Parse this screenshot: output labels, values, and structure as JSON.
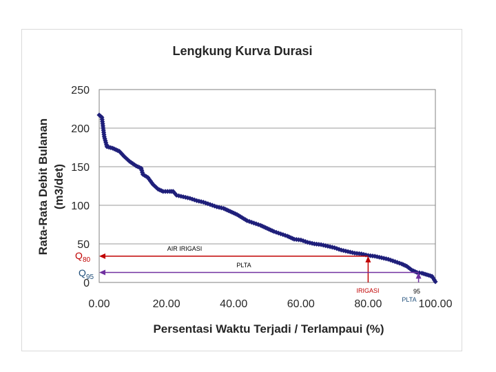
{
  "chart_data": {
    "type": "line",
    "title": "Lengkung Kurva Durasi",
    "xlabel": "Persentasi Waktu Terjadi / Terlampaui (%)",
    "ylabel_line1": "Rata-Rata Debit Bulanan",
    "ylabel_line2": "(m3/det)",
    "xlim": [
      0,
      100
    ],
    "ylim": [
      0,
      250
    ],
    "x_ticks": [
      "0.00",
      "20.00",
      "40.00",
      "60.00",
      "80.00",
      "100.00"
    ],
    "y_ticks": [
      "0",
      "50",
      "100",
      "150",
      "200",
      "250"
    ],
    "grid": true,
    "series": [
      {
        "name": "Debit",
        "color": "#1f1f7a",
        "points": [
          [
            0.0,
            217
          ],
          [
            0.8,
            214
          ],
          [
            1.5,
            189
          ],
          [
            2.3,
            176
          ],
          [
            4.0,
            174
          ],
          [
            6.0,
            170
          ],
          [
            7.5,
            163
          ],
          [
            9.0,
            157
          ],
          [
            11.0,
            151
          ],
          [
            12.5,
            148
          ],
          [
            13.0,
            140
          ],
          [
            14.5,
            136
          ],
          [
            16.0,
            127
          ],
          [
            17.5,
            121
          ],
          [
            19.0,
            118
          ],
          [
            21.0,
            118
          ],
          [
            22.0,
            118
          ],
          [
            23.0,
            113
          ],
          [
            25.0,
            111
          ],
          [
            27.0,
            109
          ],
          [
            29.0,
            106
          ],
          [
            31.0,
            104
          ],
          [
            33.0,
            101
          ],
          [
            35.0,
            98
          ],
          [
            37.0,
            96
          ],
          [
            39.0,
            92
          ],
          [
            41.0,
            88
          ],
          [
            42.5,
            84
          ],
          [
            44.0,
            80
          ],
          [
            46.0,
            77
          ],
          [
            48.0,
            74
          ],
          [
            50.0,
            70
          ],
          [
            52.0,
            66
          ],
          [
            54.0,
            63
          ],
          [
            56.0,
            60
          ],
          [
            58.0,
            56
          ],
          [
            60.0,
            55
          ],
          [
            62.0,
            52
          ],
          [
            64.0,
            50
          ],
          [
            66.0,
            49
          ],
          [
            68.0,
            47
          ],
          [
            70.0,
            45
          ],
          [
            72.0,
            42
          ],
          [
            74.0,
            40
          ],
          [
            76.0,
            38
          ],
          [
            78.0,
            37
          ],
          [
            80.0,
            35
          ],
          [
            82.0,
            34
          ],
          [
            84.0,
            32
          ],
          [
            86.0,
            30
          ],
          [
            88.0,
            27
          ],
          [
            90.0,
            24
          ],
          [
            91.5,
            21
          ],
          [
            93.0,
            16
          ],
          [
            94.5,
            13
          ],
          [
            96.0,
            12
          ],
          [
            97.5,
            10
          ],
          [
            99.0,
            8
          ],
          [
            100.0,
            1
          ]
        ]
      }
    ],
    "annotations": {
      "irigasi": {
        "label": "AIR IRIGASI",
        "x_label": "IRIGASI",
        "x": 80,
        "y": 34,
        "q_main": "Q",
        "q_sub": "80",
        "color": "#c00000"
      },
      "plta": {
        "label": "PLTA",
        "x_label": "PLTA",
        "x_value": "95",
        "x": 95,
        "y": 13,
        "q_main": "Q",
        "q_sub": "95",
        "color": "#7030a0"
      }
    }
  }
}
